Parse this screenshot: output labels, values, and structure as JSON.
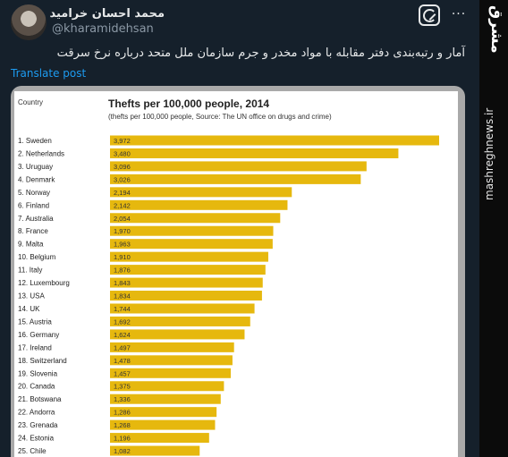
{
  "tweet": {
    "author_name": "محمد احسان خرامید",
    "handle": "@kharamidehsan",
    "text": "آمار و رتبه‌بندی دفتر مقابله با مواد مخدر و جرم سازمان ملل متحد درباره نرخ سرقت",
    "translate_label": "Translate post",
    "flag_colors": [
      "#239f40",
      "#ffffff",
      "#da0000"
    ],
    "icons": [
      "grok-icon",
      "more-icon"
    ]
  },
  "colors": {
    "bar": "#e6b80e",
    "background": "#15202b",
    "link": "#1d9bf0"
  },
  "watermark": {
    "logo": "مشرق",
    "site": "mashreghnews.ir"
  },
  "chart_data": {
    "type": "bar",
    "orientation": "horizontal",
    "column_title": "Country",
    "title": "Thefts per 100,000 people, 2014",
    "subtitle": "(thefts per 100,000 people, Source: The UN office on drugs and crime)",
    "categories": [
      "1. Sweden",
      "2. Netherlands",
      "3. Uruguay",
      "4. Denmark",
      "5. Norway",
      "6. Finland",
      "7. Australia",
      "8. France",
      "9. Malta",
      "10. Belgium",
      "11. Italy",
      "12. Luxembourg",
      "13. USA",
      "14. UK",
      "15. Austria",
      "16. Germany",
      "17. Ireland",
      "18. Switzerland",
      "19. Slovenia",
      "20. Canada",
      "21. Botswana",
      "22. Andorra",
      "23. Grenada",
      "24. Estonia",
      "25. Chile"
    ],
    "labels": [
      "3,972",
      "3,480",
      "3,096",
      "3,026",
      "2,194",
      "2,142",
      "2,054",
      "1,970",
      "1,963",
      "1,910",
      "1,876",
      "1,843",
      "1,834",
      "1,744",
      "1,692",
      "1,624",
      "1,497",
      "1,478",
      "1,457",
      "1,375",
      "1,336",
      "1,286",
      "1,268",
      "1,196",
      "1,082"
    ],
    "values": [
      3972,
      3480,
      3096,
      3026,
      2194,
      2142,
      2054,
      1970,
      1963,
      1910,
      1876,
      1843,
      1834,
      1744,
      1692,
      1624,
      1497,
      1478,
      1457,
      1375,
      1336,
      1286,
      1268,
      1196,
      1082
    ],
    "xlim": [
      0,
      3972
    ]
  }
}
